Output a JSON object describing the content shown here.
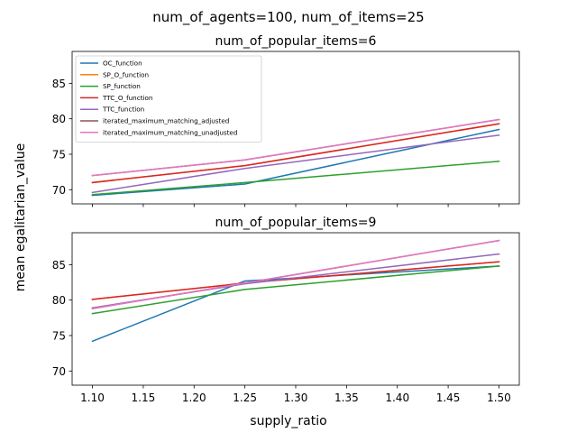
{
  "figure": {
    "suptitle": "num_of_agents=100, num_of_items=25",
    "xlabel": "supply_ratio",
    "ylabel": "mean egalitarian_value"
  },
  "chart_data": [
    {
      "type": "line",
      "title": "num_of_popular_items=6",
      "xlabel": "",
      "ylabel": "",
      "x": [
        1.1,
        1.25,
        1.5
      ],
      "xlim": [
        1.08,
        1.52
      ],
      "ylim": [
        68,
        89.5
      ],
      "yticks": [
        70,
        75,
        80,
        85
      ],
      "xticks": [
        1.1,
        1.15,
        1.2,
        1.25,
        1.3,
        1.35,
        1.4,
        1.45,
        1.5
      ],
      "xtick_labels_visible": false,
      "grid": false,
      "legend_position": "upper-left",
      "series": [
        {
          "name": "OC_function",
          "color": "#1f77b4",
          "values": [
            69.2,
            70.8,
            78.5
          ]
        },
        {
          "name": "SP_O_function",
          "color": "#ff7f0e",
          "values": [
            71.0,
            73.4,
            79.3
          ]
        },
        {
          "name": "SP_function",
          "color": "#2ca02c",
          "values": [
            69.3,
            71.0,
            74.0
          ]
        },
        {
          "name": "TTC_O_function",
          "color": "#d62728",
          "values": [
            71.0,
            73.4,
            79.3
          ]
        },
        {
          "name": "TTC_function",
          "color": "#9467bd",
          "values": [
            69.6,
            73.0,
            77.7
          ]
        },
        {
          "name": "iterated_maximum_matching_adjusted",
          "color": "#8c564b",
          "values": [
            72.0,
            74.2,
            79.9
          ]
        },
        {
          "name": "iterated_maximum_matching_unadjusted",
          "color": "#e377c2",
          "values": [
            72.0,
            74.2,
            79.9
          ]
        }
      ]
    },
    {
      "type": "line",
      "title": "num_of_popular_items=9",
      "xlabel": "",
      "ylabel": "",
      "x": [
        1.1,
        1.25,
        1.5
      ],
      "xlim": [
        1.08,
        1.52
      ],
      "ylim": [
        68,
        89.5
      ],
      "yticks": [
        70,
        75,
        80,
        85
      ],
      "xticks": [
        1.1,
        1.15,
        1.2,
        1.25,
        1.3,
        1.35,
        1.4,
        1.45,
        1.5
      ],
      "xtick_labels": [
        "1.10",
        "1.15",
        "1.20",
        "1.25",
        "1.30",
        "1.35",
        "1.40",
        "1.45",
        "1.50"
      ],
      "grid": false,
      "series": [
        {
          "name": "OC_function",
          "color": "#1f77b4",
          "values": [
            74.2,
            82.7,
            84.8
          ]
        },
        {
          "name": "SP_O_function",
          "color": "#ff7f0e",
          "values": [
            80.1,
            82.4,
            85.4
          ]
        },
        {
          "name": "SP_function",
          "color": "#2ca02c",
          "values": [
            78.1,
            81.5,
            84.8
          ]
        },
        {
          "name": "TTC_O_function",
          "color": "#d62728",
          "values": [
            80.1,
            82.4,
            85.4
          ]
        },
        {
          "name": "TTC_function",
          "color": "#9467bd",
          "values": [
            78.9,
            82.3,
            86.5
          ]
        },
        {
          "name": "iterated_maximum_matching_adjusted",
          "color": "#8c564b",
          "values": [
            78.8,
            82.4,
            88.4
          ]
        },
        {
          "name": "iterated_maximum_matching_unadjusted",
          "color": "#e377c2",
          "values": [
            78.8,
            82.4,
            88.4
          ]
        }
      ]
    }
  ]
}
